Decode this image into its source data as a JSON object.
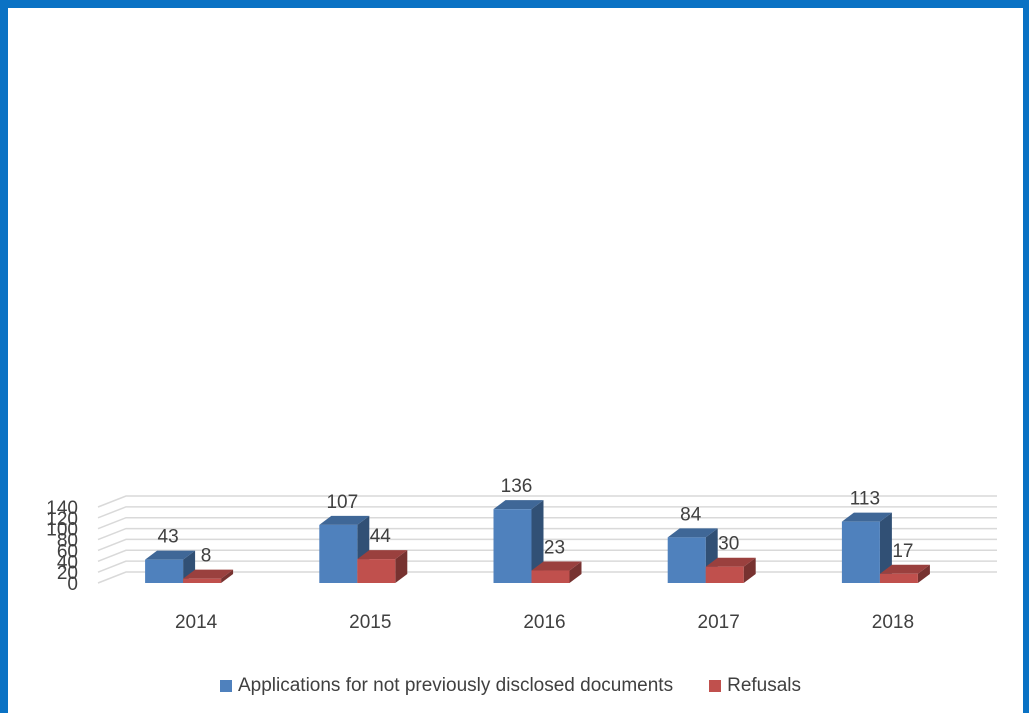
{
  "chart_data": {
    "type": "bar",
    "title": "",
    "xlabel": "",
    "ylabel": "",
    "categories": [
      "2014",
      "2015",
      "2016",
      "2017",
      "2018"
    ],
    "series": [
      {
        "name": "Applications for not previously disclosed documents",
        "values": [
          43,
          107,
          136,
          84,
          113
        ],
        "color": "#4f81bd"
      },
      {
        "name": "Refusals",
        "values": [
          8,
          44,
          23,
          30,
          17
        ],
        "color": "#c0504d"
      }
    ],
    "ylim": [
      0,
      140
    ],
    "yticks": [
      0,
      20,
      40,
      60,
      80,
      100,
      120,
      140
    ],
    "grid": true,
    "data_labels": true,
    "legend_position": "bottom",
    "style": "3d-column"
  }
}
